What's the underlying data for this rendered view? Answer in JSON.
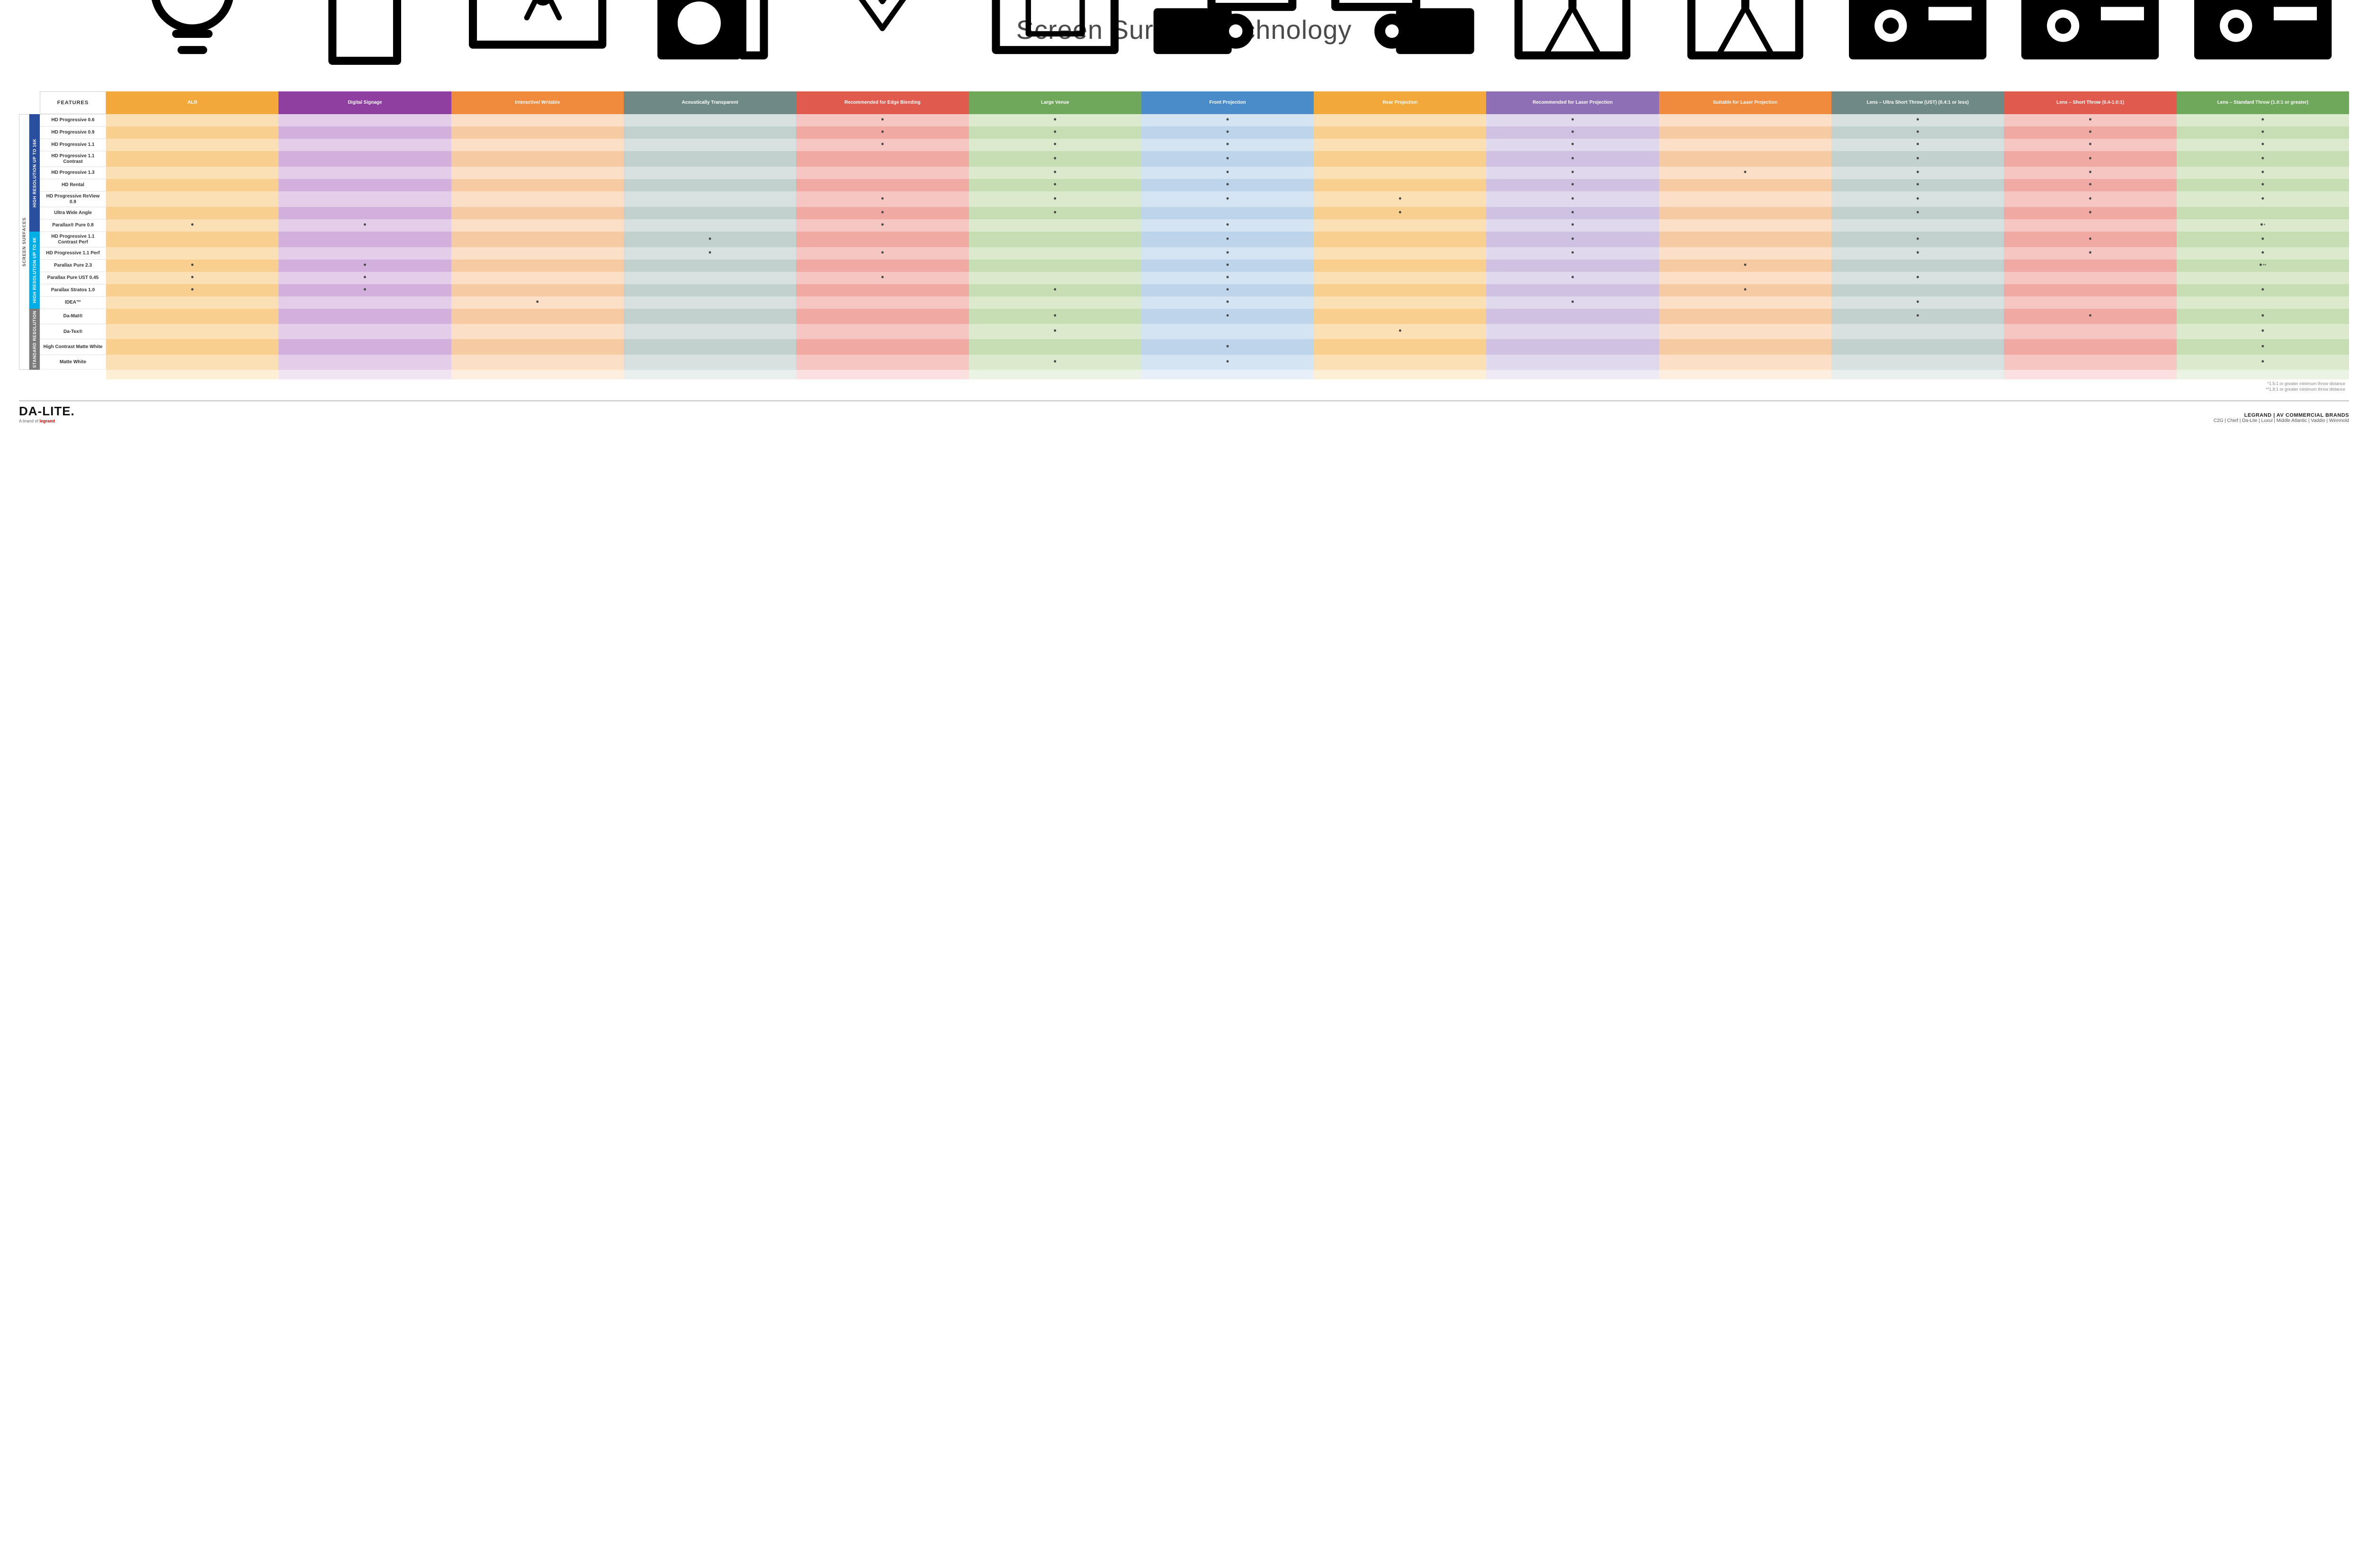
{
  "title": "Screen Surface Technology",
  "layout": {
    "gutter_cols": 2,
    "gutter_widths": [
      "22px",
      "22px"
    ],
    "row_label_width": "140px",
    "col_width": "1fr",
    "n_feature_cols": 13
  },
  "colors": {
    "text_dark": "#333333",
    "cat_16k": "#2a4f9e",
    "cat_4k": "#00aee6",
    "cat_std": "#7b7b7b",
    "footnote": "#8a8a8a"
  },
  "columns": [
    {
      "id": "alr",
      "label": "ALR",
      "header_bg": "#f3a93a",
      "odd": "#fbe0b5",
      "even": "#f8cf8f",
      "icon": "bulb"
    },
    {
      "id": "signage",
      "label": "Digital Signage",
      "header_bg": "#8e3fa0",
      "odd": "#e3cde9",
      "even": "#d2b0de",
      "icon": "signage"
    },
    {
      "id": "writable",
      "label": "Interactive/ Writable",
      "header_bg": "#f08a3c",
      "odd": "#fbe0c7",
      "even": "#f6cba3",
      "icon": "writable"
    },
    {
      "id": "acoustic",
      "label": "Acoustically Transparent",
      "header_bg": "#6f8a86",
      "odd": "#d7e1df",
      "even": "#c2d1ce",
      "icon": "speaker"
    },
    {
      "id": "edge",
      "label": "Recommended for Edge Blending",
      "header_bg": "#e15a4e",
      "odd": "#f6c7c2",
      "even": "#f0aaa3",
      "icon": "edge"
    },
    {
      "id": "venue",
      "label": "Large Venue",
      "header_bg": "#6fa85a",
      "odd": "#dbe9cd",
      "even": "#c7ddb3",
      "icon": "venue"
    },
    {
      "id": "front",
      "label": "Front Projection",
      "header_bg": "#4a8cc9",
      "odd": "#d4e4f2",
      "even": "#bcd5ea",
      "icon": "front"
    },
    {
      "id": "rear",
      "label": "Rear Projection",
      "header_bg": "#f3a93a",
      "odd": "#fbe0b5",
      "even": "#f8cf8f",
      "icon": "rear"
    },
    {
      "id": "reclaser",
      "label": "Recommended for Laser Projection",
      "header_bg": "#8e6fb5",
      "odd": "#e0d8ec",
      "even": "#cfc1e1",
      "icon": "laser-rec"
    },
    {
      "id": "suitlaser",
      "label": "Suitable for Laser Projection",
      "header_bg": "#f08a3c",
      "odd": "#fbe0c7",
      "even": "#f6cba3",
      "icon": "laser-suit"
    },
    {
      "id": "ust",
      "label": "Lens – Ultra Short Throw (UST) (0.4:1 or less)",
      "header_bg": "#6f8a86",
      "odd": "#d7e1df",
      "even": "#c2d1ce",
      "icon": "ust"
    },
    {
      "id": "short",
      "label": "Lens – Short Throw (0.4-1.0:1)",
      "header_bg": "#e15a4e",
      "odd": "#f6c7c2",
      "even": "#f0aaa3",
      "icon": "short"
    },
    {
      "id": "std",
      "label": "Lens – Standard Throw (1.0:1 or greater)",
      "header_bg": "#6fa85a",
      "odd": "#dbe9cd",
      "even": "#c7ddb3",
      "icon": "standard"
    }
  ],
  "features_header": "FEATURES",
  "outer_category": "SCREEN SURFACES",
  "categories": [
    {
      "id": "16k",
      "label": "HIGH RESOLUTION UP TO 16K",
      "bg": "#2a4f9e",
      "rows": [
        {
          "label": "HD Progressive 0.6",
          "dots": {
            "edge": "•",
            "venue": "•",
            "front": "•",
            "reclaser": "•",
            "ust": "•",
            "short": "•",
            "std": "•"
          }
        },
        {
          "label": "HD Progressive 0.9",
          "dots": {
            "edge": "•",
            "venue": "•",
            "front": "•",
            "reclaser": "•",
            "ust": "•",
            "short": "•",
            "std": "•"
          }
        },
        {
          "label": "HD Progressive 1.1",
          "dots": {
            "edge": "•",
            "venue": "•",
            "front": "•",
            "reclaser": "•",
            "ust": "•",
            "short": "•",
            "std": "•"
          }
        },
        {
          "label": "HD Progressive 1.1 Contrast",
          "dots": {
            "venue": "•",
            "front": "•",
            "reclaser": "•",
            "ust": "•",
            "short": "•",
            "std": "•"
          }
        },
        {
          "label": "HD Progressive 1.3",
          "dots": {
            "venue": "•",
            "front": "•",
            "reclaser": "•",
            "suitlaser": "•",
            "ust": "•",
            "short": "•",
            "std": "•"
          }
        },
        {
          "label": "HD Rental",
          "dots": {
            "venue": "•",
            "front": "•",
            "reclaser": "•",
            "ust": "•",
            "short": "•",
            "std": "•"
          }
        },
        {
          "label": "HD Progressive ReView 0.9",
          "dots": {
            "edge": "•",
            "venue": "•",
            "front": "•",
            "rear": "•",
            "reclaser": "•",
            "ust": "•",
            "short": "•",
            "std": "•"
          }
        },
        {
          "label": "Ultra Wide Angle",
          "dots": {
            "edge": "•",
            "venue": "•",
            "rear": "•",
            "reclaser": "•",
            "ust": "•",
            "short": "•"
          }
        },
        {
          "label": "Parallax® Pure 0.8",
          "dots": {
            "alr": "•",
            "signage": "•",
            "edge": "•",
            "front": "•",
            "reclaser": "•",
            "std": "•*"
          }
        }
      ]
    },
    {
      "id": "4k",
      "label": "HIGH RESOLUTION UP TO 4K",
      "bg": "#00aee6",
      "rows": [
        {
          "label": "HD Progressive 1.1 Contrast Perf",
          "dots": {
            "acoustic": "•",
            "front": "•",
            "reclaser": "•",
            "ust": "•",
            "short": "•",
            "std": "•"
          }
        },
        {
          "label": "HD Progressive 1.1 Perf",
          "dots": {
            "acoustic": "•",
            "edge": "•",
            "front": "•",
            "reclaser": "•",
            "ust": "•",
            "short": "•",
            "std": "•"
          }
        },
        {
          "label": "Parallax Pure 2.3",
          "dots": {
            "alr": "•",
            "signage": "•",
            "front": "•",
            "suitlaser": "•",
            "std": "•**"
          }
        },
        {
          "label": "Parallax Pure UST 0.45",
          "dots": {
            "alr": "•",
            "signage": "•",
            "edge": "•",
            "front": "•",
            "reclaser": "•",
            "ust": "•"
          }
        },
        {
          "label": "Parallax Stratos 1.0",
          "dots": {
            "alr": "•",
            "signage": "•",
            "venue": "•",
            "front": "•",
            "suitlaser": "•",
            "std": "•"
          }
        },
        {
          "label": "IDEA™",
          "dots": {
            "writable": "•",
            "front": "•",
            "reclaser": "•",
            "ust": "•"
          }
        }
      ]
    },
    {
      "id": "std",
      "label": "STANDARD RESOLUTION",
      "bg": "#7b7b7b",
      "rows": [
        {
          "label": "Da-Mat®",
          "dots": {
            "venue": "•",
            "front": "•",
            "ust": "•",
            "short": "•",
            "std": "•"
          }
        },
        {
          "label": "Da-Tex®",
          "dots": {
            "venue": "•",
            "rear": "•",
            "std": "•"
          }
        },
        {
          "label": "High Contrast Matte White",
          "dots": {
            "front": "•",
            "std": "•"
          }
        },
        {
          "label": "Matte White",
          "dots": {
            "venue": "•",
            "front": "•",
            "std": "•"
          }
        }
      ]
    }
  ],
  "footnotes": [
    "*1.5:1 or greater minimum throw distance",
    "**1.8:1 or greater minimum throw distance"
  ],
  "footer": {
    "logo": "DA-LITE.",
    "logo_sub_prefix": "A brand of ",
    "logo_sub_brand": "legrand",
    "brands_header": "LEGRAND | AV COMMERCIAL BRANDS",
    "brands_list": "C2G  |  Chief  |  Da-Lite  |  Luxul  |  Middle Atlantic  |  Vaddio  |  Wiremold"
  }
}
